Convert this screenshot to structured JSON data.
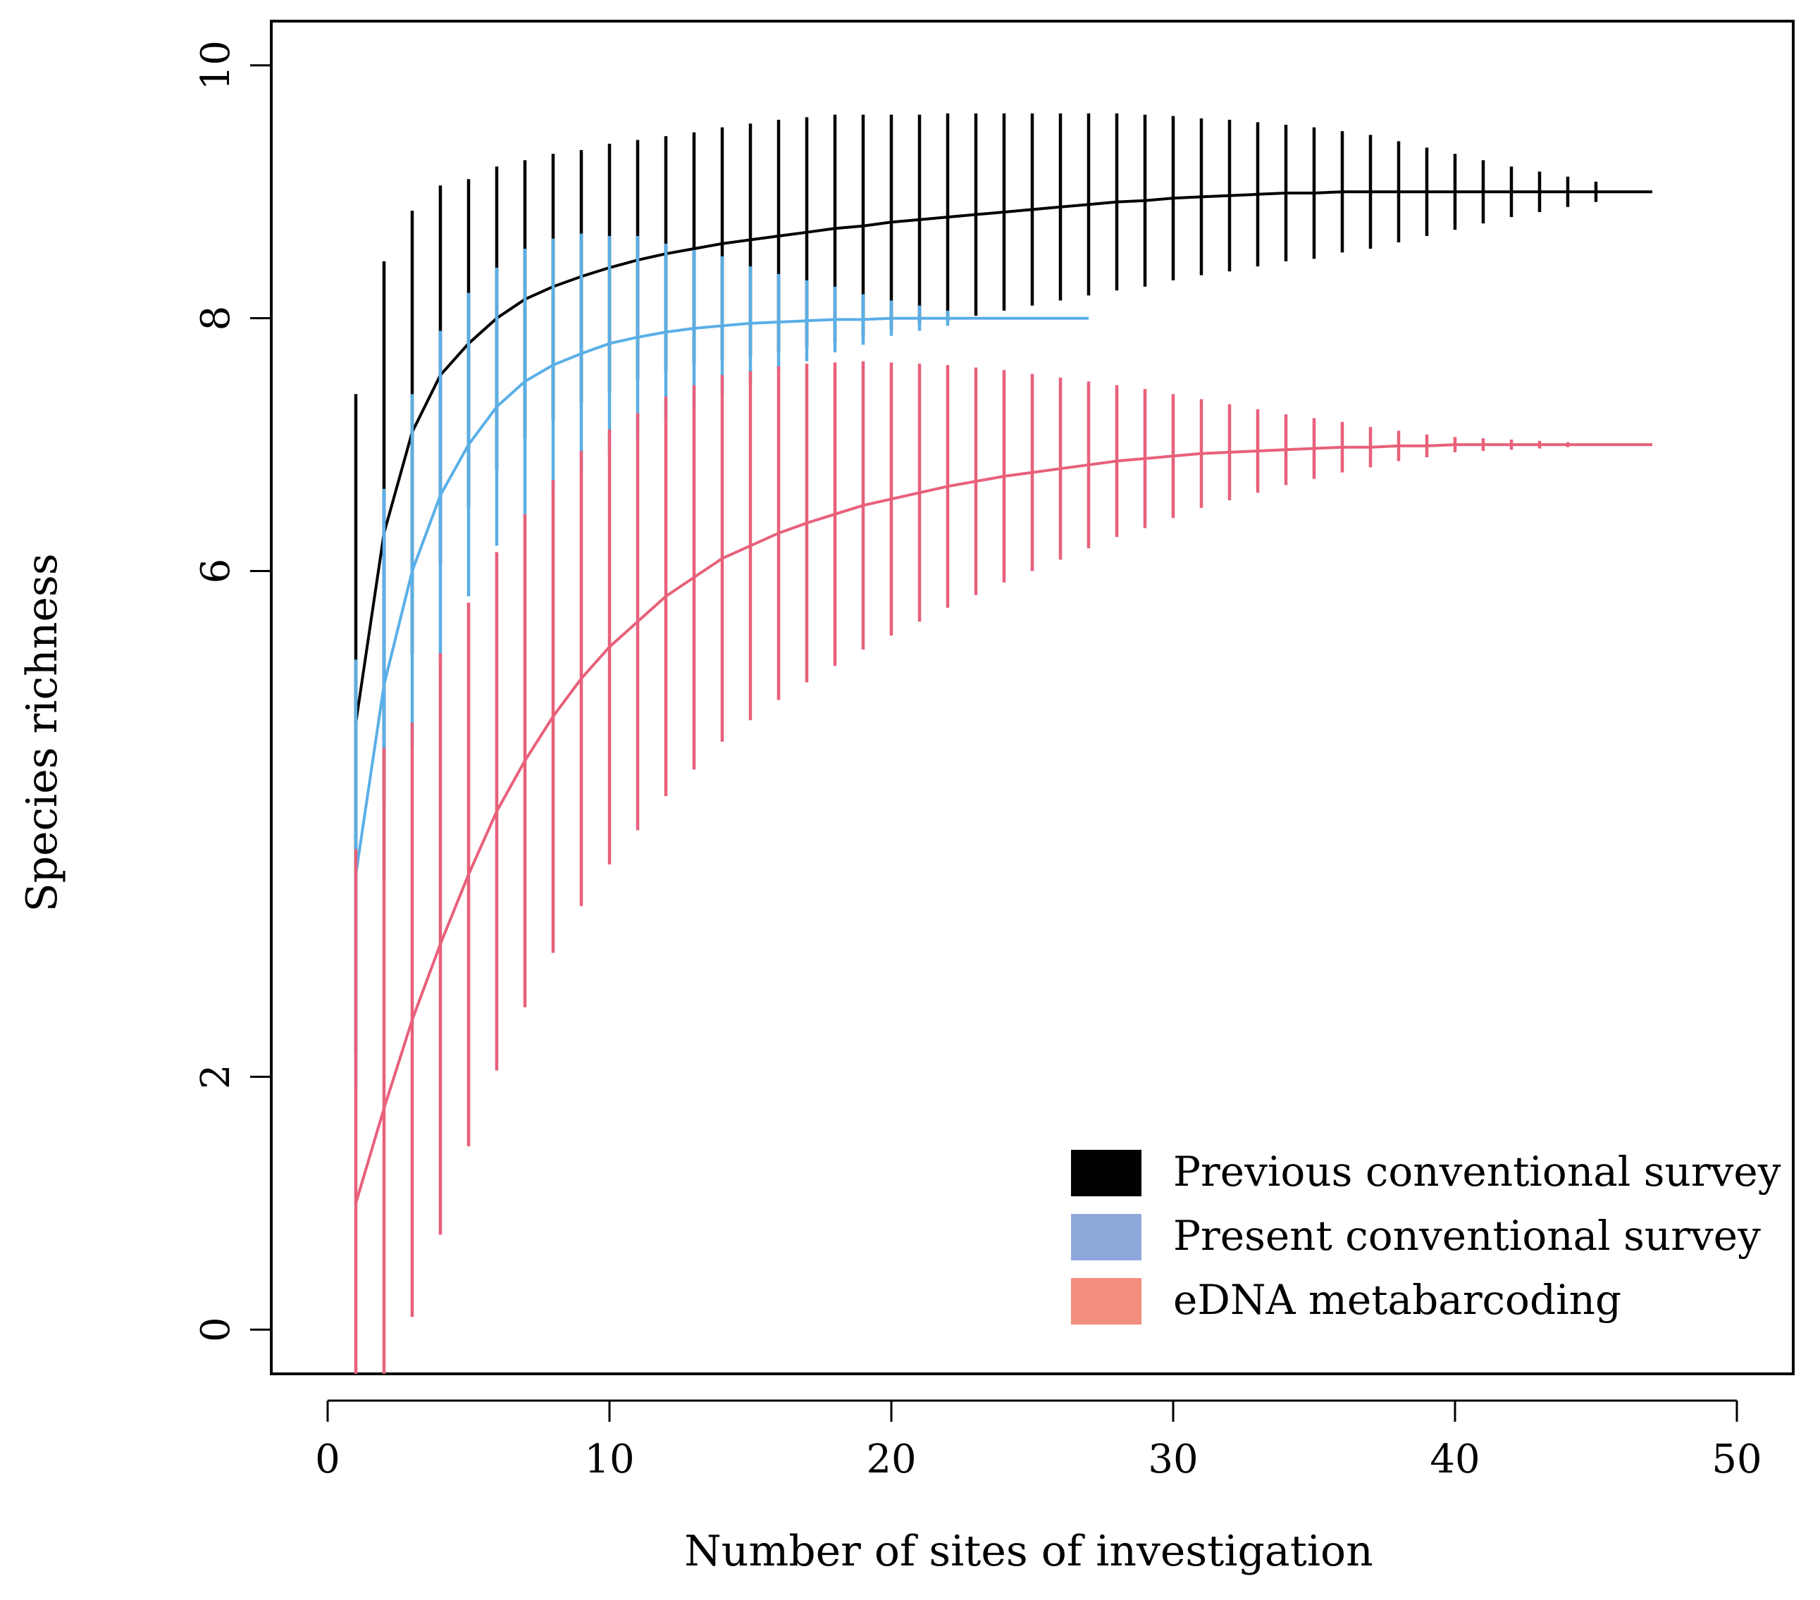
{
  "chart_data": {
    "type": "line",
    "title": "",
    "xlabel": "Number of sites of investigation",
    "ylabel": "Species richness",
    "xlim": [
      -2,
      52
    ],
    "ylim": [
      -0.35,
      10.35
    ],
    "xticks": [
      0,
      10,
      20,
      30,
      40,
      50
    ],
    "yticks": [
      0,
      2,
      6,
      8,
      10
    ],
    "ytick_labels": [
      "0",
      "2",
      "6",
      "8",
      "10"
    ],
    "xtick_labels": [
      "0",
      "10",
      "20",
      "30",
      "40",
      "50"
    ],
    "grid": false,
    "legend": {
      "position": "bottom-right",
      "entries": [
        {
          "label": "Previous conventional survey",
          "color": "#000000"
        },
        {
          "label": "Present conventional survey",
          "color": "#8FA8DC"
        },
        {
          "label": "eDNA metabarcoding",
          "color": "#F28E7E"
        }
      ]
    },
    "series": [
      {
        "name": "Previous conventional survey",
        "color": "#000000",
        "x": [
          1,
          2,
          3,
          4,
          5,
          6,
          7,
          8,
          9,
          10,
          11,
          12,
          13,
          14,
          15,
          16,
          17,
          18,
          19,
          20,
          21,
          22,
          23,
          24,
          25,
          26,
          27,
          28,
          29,
          30,
          31,
          32,
          33,
          34,
          35,
          36,
          37,
          38,
          39,
          40,
          41,
          42,
          43,
          44,
          45,
          46,
          47
        ],
        "y": [
          4.8,
          6.3,
          7.1,
          7.55,
          7.8,
          8.0,
          8.15,
          8.25,
          8.33,
          8.4,
          8.46,
          8.51,
          8.55,
          8.59,
          8.62,
          8.65,
          8.68,
          8.71,
          8.73,
          8.76,
          8.78,
          8.8,
          8.82,
          8.84,
          8.86,
          8.88,
          8.9,
          8.92,
          8.93,
          8.95,
          8.96,
          8.97,
          8.98,
          8.99,
          8.99,
          9.0,
          9.0,
          9.0,
          9.0,
          9.0,
          9.0,
          9.0,
          9.0,
          9.0,
          9.0,
          9.0,
          9.0
        ],
        "err": [
          2.6,
          2.15,
          1.75,
          1.5,
          1.3,
          1.2,
          1.1,
          1.05,
          1.0,
          0.98,
          0.95,
          0.93,
          0.92,
          0.92,
          0.92,
          0.92,
          0.91,
          0.9,
          0.88,
          0.85,
          0.83,
          0.82,
          0.8,
          0.78,
          0.76,
          0.74,
          0.72,
          0.7,
          0.68,
          0.65,
          0.62,
          0.6,
          0.57,
          0.54,
          0.52,
          0.48,
          0.45,
          0.4,
          0.35,
          0.3,
          0.25,
          0.2,
          0.16,
          0.12,
          0.08,
          0.0,
          0.0
        ],
        "err_until": 45
      },
      {
        "name": "Present conventional survey",
        "color": "#5AAFE6",
        "x": [
          1,
          2,
          3,
          4,
          5,
          6,
          7,
          8,
          9,
          10,
          11,
          12,
          13,
          14,
          15,
          16,
          17,
          18,
          19,
          20,
          21,
          22,
          23,
          24,
          25,
          26,
          27
        ],
        "y": [
          3.6,
          5.1,
          6.0,
          6.6,
          7.0,
          7.3,
          7.5,
          7.63,
          7.72,
          7.8,
          7.85,
          7.89,
          7.92,
          7.94,
          7.96,
          7.97,
          7.98,
          7.99,
          7.99,
          8.0,
          8.0,
          8.0,
          8.0,
          8.0,
          8.0,
          8.0,
          8.0
        ],
        "err": [
          1.7,
          1.55,
          1.4,
          1.3,
          1.2,
          1.1,
          1.05,
          1.0,
          0.95,
          0.85,
          0.8,
          0.7,
          0.62,
          0.55,
          0.45,
          0.38,
          0.32,
          0.26,
          0.2,
          0.14,
          0.1,
          0.06,
          0.0,
          0.0,
          0.0,
          0.0,
          0.0
        ],
        "err_until": 22
      },
      {
        "name": "eDNA metabarcoding",
        "color": "#E8607A",
        "x": [
          1,
          2,
          3,
          4,
          5,
          6,
          7,
          8,
          9,
          10,
          11,
          12,
          13,
          14,
          15,
          16,
          17,
          18,
          19,
          20,
          21,
          22,
          23,
          24,
          25,
          26,
          27,
          28,
          29,
          30,
          31,
          32,
          33,
          34,
          35,
          36,
          37,
          38,
          39,
          40,
          41,
          42,
          43,
          44,
          45,
          46,
          47
        ],
        "y": [
          1.0,
          1.75,
          2.45,
          3.05,
          3.6,
          4.1,
          4.5,
          4.85,
          5.15,
          5.4,
          5.6,
          5.8,
          5.95,
          6.1,
          6.2,
          6.3,
          6.38,
          6.45,
          6.52,
          6.57,
          6.62,
          6.67,
          6.71,
          6.75,
          6.78,
          6.81,
          6.84,
          6.87,
          6.89,
          6.91,
          6.93,
          6.94,
          6.95,
          6.96,
          6.97,
          6.98,
          6.98,
          6.99,
          6.99,
          7.0,
          7.0,
          7.0,
          7.0,
          7.0,
          7.0,
          7.0,
          7.0
        ],
        "err": [
          2.8,
          2.85,
          2.35,
          2.3,
          2.15,
          2.05,
          1.95,
          1.87,
          1.8,
          1.72,
          1.65,
          1.58,
          1.52,
          1.45,
          1.38,
          1.32,
          1.26,
          1.2,
          1.14,
          1.08,
          1.02,
          0.96,
          0.9,
          0.84,
          0.78,
          0.72,
          0.66,
          0.6,
          0.55,
          0.49,
          0.43,
          0.38,
          0.33,
          0.28,
          0.24,
          0.2,
          0.16,
          0.12,
          0.09,
          0.06,
          0.05,
          0.04,
          0.03,
          0.02,
          0.0,
          0.0,
          0.0
        ],
        "err_until": 44
      }
    ]
  }
}
